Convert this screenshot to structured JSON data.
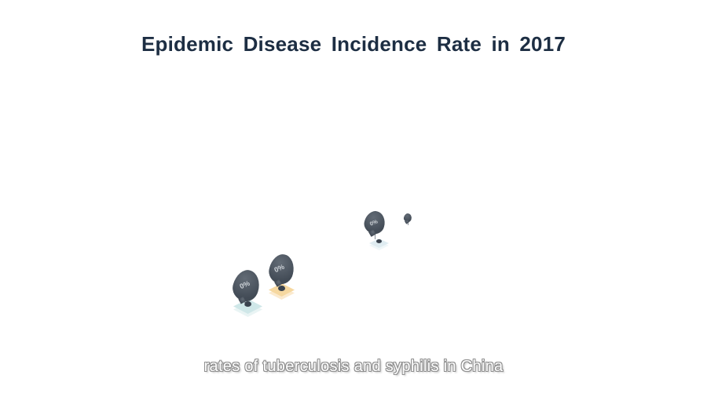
{
  "frame": {
    "background": "#ffffff"
  },
  "title": {
    "text": "Epidemic Disease Incidence Rate in 2017",
    "color": "#1d2e43"
  },
  "caption": {
    "text": "rates of tuberculosis and syphilis in China",
    "color": "#fdfdfd",
    "outline_color": "#909090"
  },
  "scene": {
    "balloon_color": "#49535f",
    "label_color": "#ced3d8",
    "anchor_color": "#3a434e",
    "string_color": "#8a9099",
    "balloons": [
      {
        "name": "balloon-1",
        "label": "0%",
        "platform_color": "#cfe7e8",
        "platform_side_color": "#e9f4f4"
      },
      {
        "name": "balloon-2",
        "label": "0%",
        "platform_color": "#f6d8a0",
        "platform_side_color": "#fbeace"
      },
      {
        "name": "balloon-3",
        "label": "0%",
        "platform_color": "#dfecf1",
        "platform_side_color": "#f0f7f9"
      },
      {
        "name": "balloon-4",
        "label": ""
      }
    ]
  },
  "chart_data": {
    "type": "bar",
    "marker_style": "balloon-pictogram",
    "title": "Epidemic Disease Incidence Rate in 2017",
    "caption": "rates of tuberculosis and syphilis in China",
    "categories": [
      "",
      "",
      "",
      ""
    ],
    "values": [
      0,
      0,
      0,
      0
    ],
    "value_labels": [
      "0%",
      "0%",
      "0%",
      ""
    ],
    "xlabel": "",
    "ylabel": "",
    "grid": false,
    "legend": false
  }
}
